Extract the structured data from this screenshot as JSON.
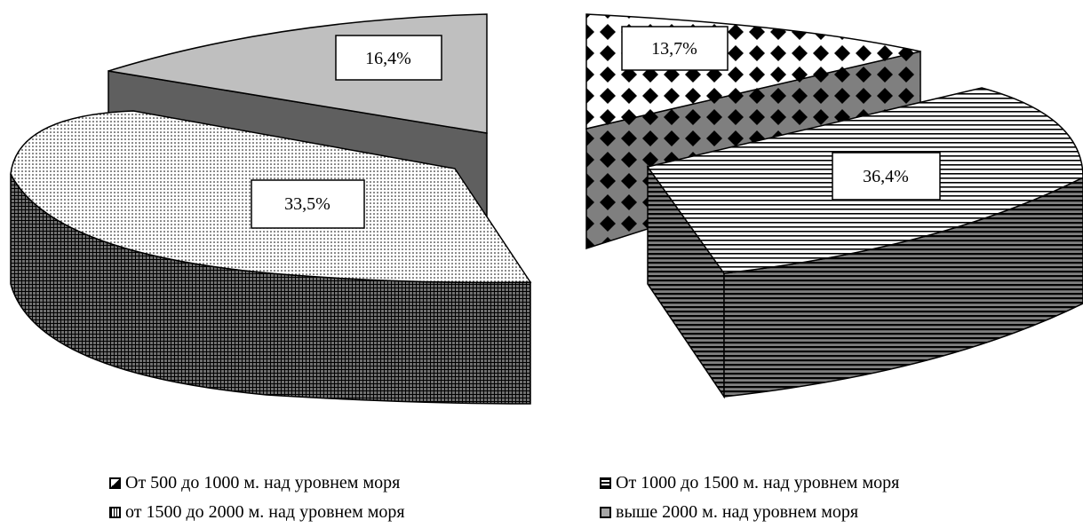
{
  "chart_data": {
    "type": "pie",
    "categories": [
      "От 500 до 1000 м. над уровнем моря",
      "От 1000 до 1500 м. над уровнем моря",
      "от 1500 до 2000 м. над уровнем моря",
      "выше 2000 м. над уровнем моря"
    ],
    "values": [
      13.7,
      36.4,
      33.5,
      16.4
    ],
    "data_labels": [
      "13,7%",
      "36,4%",
      "33,5%",
      "16,4%"
    ],
    "exploded_3d": true,
    "legend_position": "bottom",
    "colors": {
      "От 500 до 1000 м. над уровнем моря": "#000000",
      "От 1000 до 1500 м. над уровнем моря": "#000000",
      "от 1500 до 2000 м. над уровнем моря": "#bfbfbf",
      "выше 2000 м. над уровнем моря": "#a6a6a6"
    }
  }
}
